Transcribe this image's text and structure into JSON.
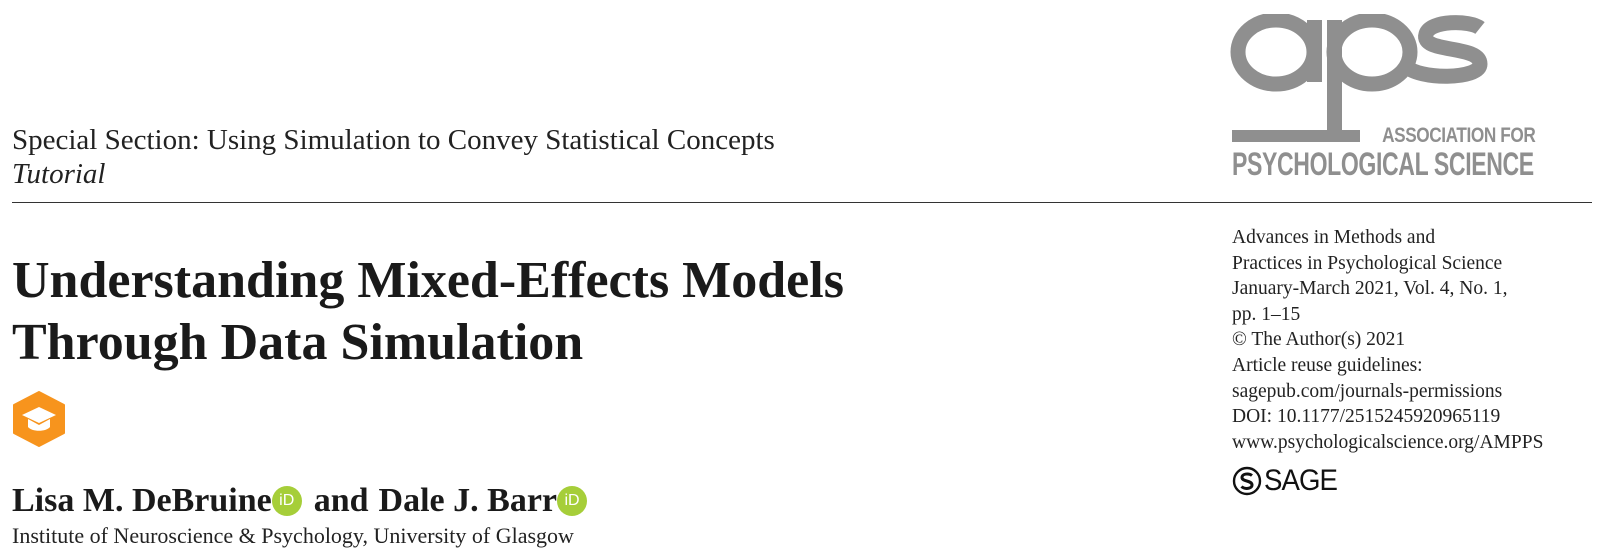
{
  "header": {
    "section": "Special Section: Using Simulation to Convey Statistical Concepts",
    "article_type": "Tutorial"
  },
  "logo": {
    "wordmark": "aps",
    "org_line1": "ASSOCIATION FOR",
    "org_line2": "PSYCHOLOGICAL SCIENCE",
    "color": "#8f8f8f"
  },
  "article": {
    "title_line1": "Understanding Mixed-Effects Models",
    "title_line2": "Through Data Simulation",
    "badge_icon": "graduation-cap-icon",
    "badge_color": "#f7941d"
  },
  "authors": {
    "author1": "Lisa M. DeBruine",
    "connector": "and",
    "author2": "Dale J. Barr",
    "orcid_label": "iD",
    "orcid_color": "#a6ce39",
    "affiliation": "Institute of Neuroscience & Psychology, University of Glasgow"
  },
  "journal_meta": {
    "lines": [
      "Advances in Methods and",
      "Practices in Psychological Science",
      "January-March 2021, Vol. 4, No. 1,",
      "pp. 1–15",
      "© The Author(s) 2021",
      "Article reuse guidelines:",
      "sagepub.com/journals-permissions",
      "DOI: 10.1177/2515245920965119",
      "www.psychologicalscience.org/AMPPS"
    ],
    "publisher": "SAGE"
  }
}
